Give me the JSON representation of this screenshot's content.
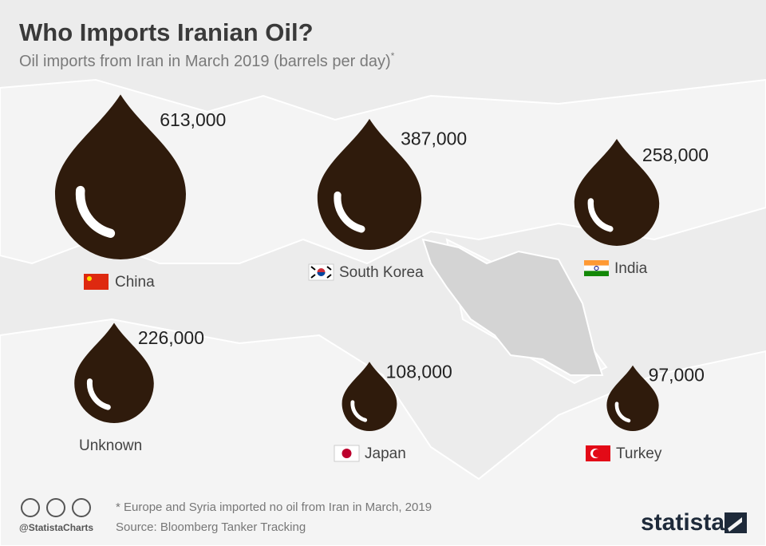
{
  "chart_data": {
    "type": "drop",
    "title": "Who Imports Iranian Oil?",
    "subtitle": "Oil imports from Iran in March 2019 (barrels per day)",
    "subtitle_marker": "*",
    "categories": [
      "China",
      "South Korea",
      "India",
      "Unknown",
      "Japan",
      "Turkey"
    ],
    "values": [
      613000,
      387000,
      258000,
      226000,
      108000,
      97000
    ],
    "value_labels": [
      "613,000",
      "387,000",
      "258,000",
      "226,000",
      "108,000",
      "97,000"
    ],
    "color": "#2f1b0c",
    "footnote": "* Europe and Syria imported no oil from Iran in March, 2019",
    "source": "Source: Bloomberg Tanker Tracking",
    "handle": "@StatistaCharts",
    "brand": "statista"
  }
}
